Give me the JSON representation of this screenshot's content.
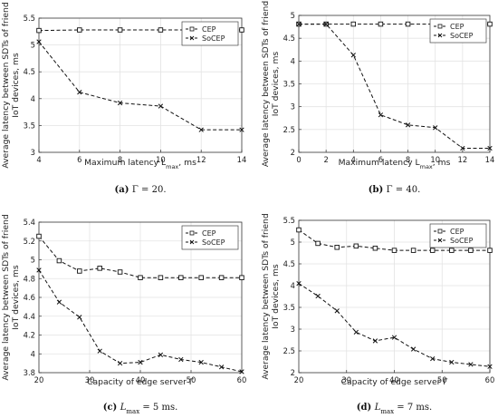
{
  "chart_data": [
    {
      "type": "line",
      "caption": "(a) Γ = 20.",
      "caption_tag": "(a)",
      "caption_rest": "Γ = 20.",
      "xlabel": "Maximum latency L",
      "xlabel_sub": "max",
      "xlabel_unit": ", ms",
      "ylabel_line1": "Average latency between SDTs of friend",
      "ylabel_line2": "IoT devices, ms",
      "xlim": [
        4,
        14
      ],
      "ylim": [
        3,
        5.5
      ],
      "xticks": [
        4,
        6,
        8,
        10,
        12,
        14
      ],
      "yticks": [
        3,
        3.5,
        4,
        4.5,
        5,
        5.5
      ],
      "xtick_labels": [
        "4",
        "6",
        "8",
        "10",
        "12",
        "14"
      ],
      "ytick_labels": [
        "3",
        "3.5",
        "4",
        "4.5",
        "5",
        "5.5"
      ],
      "grid": true,
      "legend_position": "top-right",
      "series": [
        {
          "name": "CEP",
          "marker": "square",
          "x": [
            4,
            6,
            8,
            10,
            12,
            14
          ],
          "y": [
            5.27,
            5.28,
            5.28,
            5.28,
            5.28,
            5.28
          ]
        },
        {
          "name": "SoCEP",
          "marker": "x",
          "x": [
            4,
            6,
            8,
            10,
            12,
            14
          ],
          "y": [
            5.06,
            4.12,
            3.92,
            3.86,
            3.42,
            3.42
          ]
        }
      ]
    },
    {
      "type": "line",
      "caption": "(b) Γ = 40.",
      "caption_tag": "(b)",
      "caption_rest": "Γ = 40.",
      "xlabel": "Maximum latency L",
      "xlabel_sub": "max",
      "xlabel_unit": ", ms",
      "ylabel_line1": "Average latency between SDTs of friend",
      "ylabel_line2": "IoT devices, ms",
      "xlim": [
        0,
        14
      ],
      "ylim": [
        2,
        5
      ],
      "xticks": [
        0,
        2,
        4,
        6,
        8,
        10,
        12,
        14
      ],
      "yticks": [
        2,
        2.5,
        3,
        3.5,
        4,
        4.5,
        5
      ],
      "xtick_labels": [
        "0",
        "2",
        "4",
        "6",
        "8",
        "10",
        "12",
        "14"
      ],
      "ytick_labels": [
        "2",
        "2.5",
        "3",
        "3.5",
        "4",
        "4.5",
        "5"
      ],
      "grid": true,
      "legend_position": "top-right",
      "series": [
        {
          "name": "CEP",
          "marker": "square",
          "x": [
            0,
            2,
            4,
            6,
            8,
            10,
            12,
            14
          ],
          "y": [
            4.81,
            4.81,
            4.81,
            4.81,
            4.81,
            4.81,
            4.81,
            4.81
          ]
        },
        {
          "name": "SoCEP",
          "marker": "x",
          "x": [
            0,
            2,
            4,
            6,
            8,
            10,
            12,
            14
          ],
          "y": [
            4.81,
            4.81,
            4.13,
            2.82,
            2.6,
            2.54,
            2.09,
            2.09
          ]
        }
      ]
    },
    {
      "type": "line",
      "caption": "(c) L_max = 5 ms.",
      "caption_tag": "(c)",
      "caption_pre": "L",
      "caption_sub": "max",
      "caption_post": " = 5 ms.",
      "xlabel": "Capacity of edge server Γ",
      "ylabel_line1": "Average latency between SDTs of friend",
      "ylabel_line2": "IoT devices, ms",
      "xlim": [
        20,
        60
      ],
      "ylim": [
        3.8,
        5.4
      ],
      "xticks": [
        20,
        30,
        40,
        50,
        60
      ],
      "yticks": [
        3.8,
        4,
        4.2,
        4.4,
        4.6,
        4.8,
        5,
        5.2,
        5.4
      ],
      "xtick_labels": [
        "20",
        "30",
        "40",
        "50",
        "60"
      ],
      "ytick_labels": [
        "3.8",
        "4",
        "4.2",
        "4.4",
        "4.6",
        "4.8",
        "5",
        "5.2",
        "5.4"
      ],
      "grid": true,
      "legend_position": "top-right",
      "series": [
        {
          "name": "CEP",
          "marker": "square",
          "x": [
            20,
            24,
            28,
            32,
            36,
            40,
            44,
            48,
            52,
            56,
            60
          ],
          "y": [
            5.25,
            4.99,
            4.88,
            4.91,
            4.87,
            4.81,
            4.81,
            4.81,
            4.81,
            4.81,
            4.81
          ]
        },
        {
          "name": "SoCEP",
          "marker": "x",
          "x": [
            20,
            24,
            28,
            32,
            36,
            40,
            44,
            48,
            52,
            56,
            60
          ],
          "y": [
            4.89,
            4.55,
            4.39,
            4.03,
            3.9,
            3.91,
            3.99,
            3.94,
            3.91,
            3.86,
            3.81
          ]
        }
      ]
    },
    {
      "type": "line",
      "caption": "(d) L_max = 7 ms.",
      "caption_tag": "(d)",
      "caption_pre": "L",
      "caption_sub": "max",
      "caption_post": " = 7 ms.",
      "xlabel": "Capacity of edge server Γ",
      "ylabel_line1": "Average latency between SDTs of friend",
      "ylabel_line2": "IoT devices, ms",
      "xlim": [
        20,
        60
      ],
      "ylim": [
        2,
        5.5
      ],
      "xticks": [
        20,
        30,
        40,
        50,
        60
      ],
      "yticks": [
        2,
        2.5,
        3,
        3.5,
        4,
        4.5,
        5,
        5.5
      ],
      "xtick_labels": [
        "20",
        "30",
        "40",
        "50",
        "60"
      ],
      "ytick_labels": [
        "2",
        "2.5",
        "3",
        "3.5",
        "4",
        "4.5",
        "5",
        "5.5"
      ],
      "grid": true,
      "legend_position": "top-right",
      "series": [
        {
          "name": "CEP",
          "marker": "square",
          "x": [
            20,
            24,
            28,
            32,
            36,
            40,
            44,
            48,
            52,
            56,
            60
          ],
          "y": [
            5.28,
            4.97,
            4.88,
            4.91,
            4.86,
            4.81,
            4.81,
            4.81,
            4.81,
            4.81,
            4.81
          ]
        },
        {
          "name": "SoCEP",
          "marker": "x",
          "x": [
            20,
            24,
            28,
            32,
            36,
            40,
            44,
            48,
            52,
            56,
            60
          ],
          "y": [
            4.05,
            3.76,
            3.42,
            2.93,
            2.73,
            2.81,
            2.54,
            2.32,
            2.24,
            2.19,
            2.14
          ]
        }
      ]
    }
  ]
}
